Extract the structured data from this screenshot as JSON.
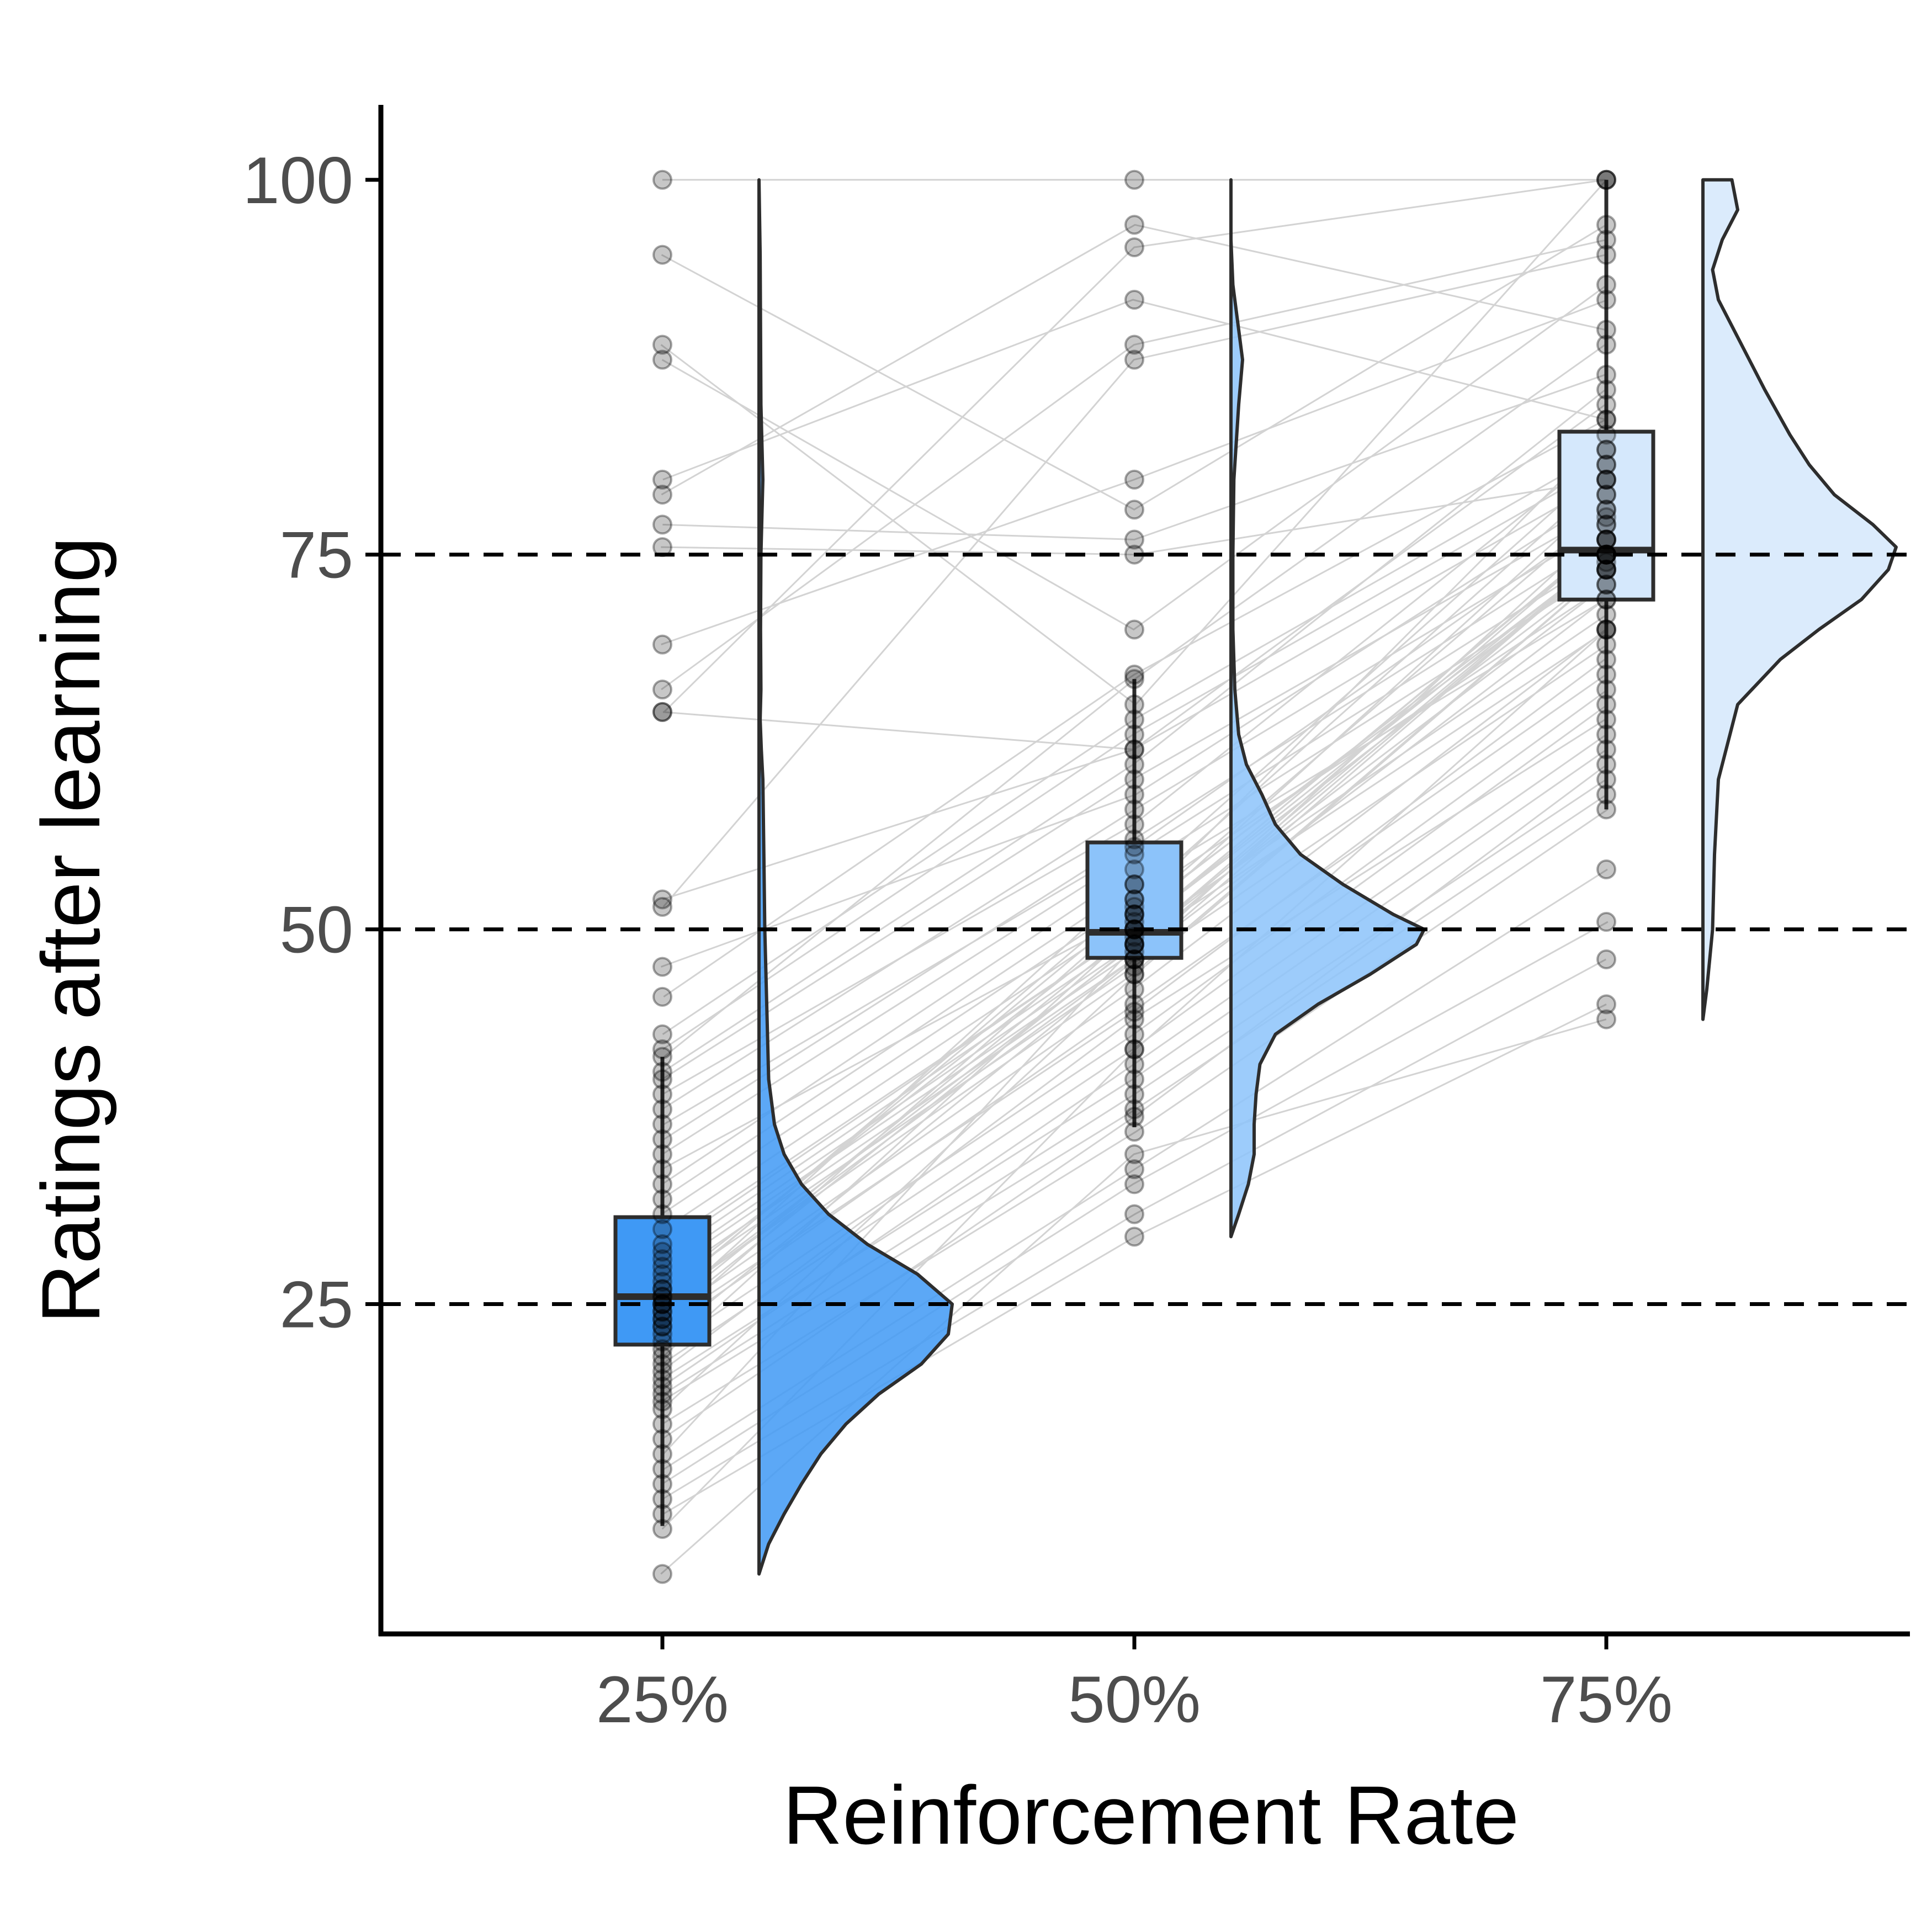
{
  "chart_data": {
    "type": "raincloud",
    "xlabel": "Reinforcement Rate",
    "ylabel": "Ratings after learning",
    "categories": [
      "25%",
      "50%",
      "75%"
    ],
    "y_ticks": [
      25,
      50,
      75,
      100
    ],
    "ylim": [
      3,
      105
    ],
    "reference_lines": [
      25,
      50,
      75
    ],
    "grid": false,
    "legend": "none",
    "colors": {
      "25%": "#3f99f5",
      "50%": "#8cc3fa",
      "75%": "#d5e8fc",
      "connector": "#d3d3d3",
      "point": "#000000",
      "outline": "#2d2d2d",
      "reference": "#000000"
    },
    "boxplots": [
      {
        "category": "25%",
        "q1": 22.3,
        "median": 25.5,
        "q3": 30.8,
        "whisker_low": 10.2,
        "whisker_high": 41.5
      },
      {
        "category": "50%",
        "q1": 48.1,
        "median": 49.8,
        "q3": 55.8,
        "whisker_low": 36.8,
        "whisker_high": 66.7
      },
      {
        "category": "75%",
        "q1": 72.0,
        "median": 75.3,
        "q3": 83.2,
        "whisker_low": 58.0,
        "whisker_high": 100
      }
    ],
    "densities": [
      {
        "category": "25%",
        "y": [
          7.0,
          9.0,
          11.0,
          13.0,
          15.0,
          17.0,
          19.0,
          21.0,
          23.0,
          25.0,
          27.0,
          29.0,
          31.0,
          33.0,
          35.0,
          37.0,
          40.0,
          45.0,
          50.0,
          55.0,
          60.0,
          62.0,
          64.0,
          66.0,
          70.0,
          75.0,
          80.0,
          85.0,
          90.0,
          95.0,
          100.0
        ],
        "density": [
          0.0,
          0.05,
          0.13,
          0.22,
          0.32,
          0.45,
          0.62,
          0.84,
          0.98,
          1.0,
          0.82,
          0.56,
          0.36,
          0.22,
          0.13,
          0.08,
          0.05,
          0.04,
          0.03,
          0.025,
          0.02,
          0.012,
          0.006,
          0.01,
          0.008,
          0.01,
          0.02,
          0.01,
          0.008,
          0.006,
          0.0
        ]
      },
      {
        "category": "50%",
        "y": [
          29.5,
          31.0,
          33.0,
          35.0,
          37.0,
          39.0,
          41.0,
          43.0,
          45.0,
          47.0,
          49.0,
          50.0,
          51.0,
          53.0,
          55.0,
          57.0,
          59.0,
          61.0,
          63.0,
          66.0,
          70.0,
          75.0,
          80.0,
          85.0,
          88.0,
          90.0,
          93.0,
          96.0,
          100.0
        ],
        "density": [
          0.0,
          0.04,
          0.09,
          0.12,
          0.12,
          0.13,
          0.15,
          0.23,
          0.45,
          0.72,
          0.96,
          1.0,
          0.84,
          0.58,
          0.36,
          0.23,
          0.16,
          0.08,
          0.04,
          0.02,
          0.01,
          0.01,
          0.015,
          0.04,
          0.06,
          0.04,
          0.01,
          0.0,
          0.0
        ]
      },
      {
        "category": "75%",
        "y": [
          44.0,
          46.0,
          48.0,
          50.0,
          55.0,
          60.0,
          65.0,
          68.0,
          70.0,
          72.0,
          74.0,
          75.5,
          77.0,
          79.0,
          81.0,
          83.0,
          86.0,
          89.0,
          92.0,
          94.0,
          96.0,
          98.0,
          100.0
        ],
        "density": [
          0.0,
          0.02,
          0.035,
          0.05,
          0.06,
          0.08,
          0.18,
          0.4,
          0.6,
          0.82,
          0.96,
          1.0,
          0.88,
          0.68,
          0.55,
          0.45,
          0.32,
          0.2,
          0.08,
          0.05,
          0.1,
          0.18,
          0.15
        ]
      }
    ],
    "paired_observations": {
      "columns": [
        "25%",
        "50%",
        "75%"
      ],
      "values": [
        [
          100,
          100,
          100
        ],
        [
          95,
          78,
          97
        ],
        [
          89,
          65,
          100
        ],
        [
          88,
          70,
          93
        ],
        [
          80,
          92,
          84
        ],
        [
          79,
          97,
          90
        ],
        [
          77,
          76,
          87
        ],
        [
          75.5,
          75,
          80
        ],
        [
          69,
          80,
          92
        ],
        [
          66,
          89,
          96
        ],
        [
          64.5,
          62,
          85
        ],
        [
          64.5,
          95.5,
          100
        ],
        [
          52,
          62,
          80
        ],
        [
          51.5,
          88,
          95
        ],
        [
          47.5,
          59,
          79
        ],
        [
          45.5,
          67,
          84
        ],
        [
          43,
          64,
          82
        ],
        [
          42,
          63,
          81
        ],
        [
          40,
          60,
          78
        ],
        [
          38,
          58,
          77
        ],
        [
          36,
          56,
          76
        ],
        [
          35,
          55,
          75
        ],
        [
          33,
          54,
          74
        ],
        [
          32,
          53,
          72
        ],
        [
          31,
          52,
          73
        ],
        [
          30,
          51,
          75
        ],
        [
          29,
          50,
          76
        ],
        [
          28.5,
          50,
          74
        ],
        [
          28,
          49.5,
          71
        ],
        [
          27.5,
          49,
          70
        ],
        [
          27,
          48.5,
          75
        ],
        [
          26.5,
          48,
          77
        ],
        [
          26,
          50.5,
          79
        ],
        [
          26,
          47.5,
          69
        ],
        [
          25.5,
          52,
          80
        ],
        [
          25.5,
          51.5,
          83
        ],
        [
          25,
          49,
          75
        ],
        [
          25,
          48,
          72
        ],
        [
          25,
          47,
          74
        ],
        [
          24.5,
          50,
          76
        ],
        [
          24.5,
          53,
          81
        ],
        [
          24,
          46,
          70
        ],
        [
          24,
          49,
          73
        ],
        [
          23.5,
          44.5,
          68
        ],
        [
          23.5,
          51,
          78
        ],
        [
          23,
          45,
          67
        ],
        [
          22.5,
          48,
          75
        ],
        [
          22,
          43,
          66
        ],
        [
          21.5,
          50,
          75
        ],
        [
          21,
          42,
          65
        ],
        [
          20.5,
          44,
          64
        ],
        [
          20,
          40,
          62
        ],
        [
          19.5,
          41,
          63
        ],
        [
          19,
          39,
          60
        ],
        [
          18.5,
          38,
          59
        ],
        [
          18,
          47,
          74
        ],
        [
          17,
          36.5,
          58
        ],
        [
          16,
          37.5,
          61
        ],
        [
          15,
          49,
          76
        ],
        [
          14,
          34,
          54
        ],
        [
          13,
          33,
          50.5
        ],
        [
          12,
          31,
          48
        ],
        [
          11,
          29.5,
          45
        ],
        [
          10,
          42,
          70
        ],
        [
          7,
          35,
          44
        ],
        [
          41.5,
          66.7,
          89
        ],
        [
          40.5,
          61,
          86
        ],
        [
          39,
          57,
          82
        ],
        [
          37,
          55.5,
          77.5
        ],
        [
          34,
          51,
          74.5
        ]
      ]
    }
  }
}
